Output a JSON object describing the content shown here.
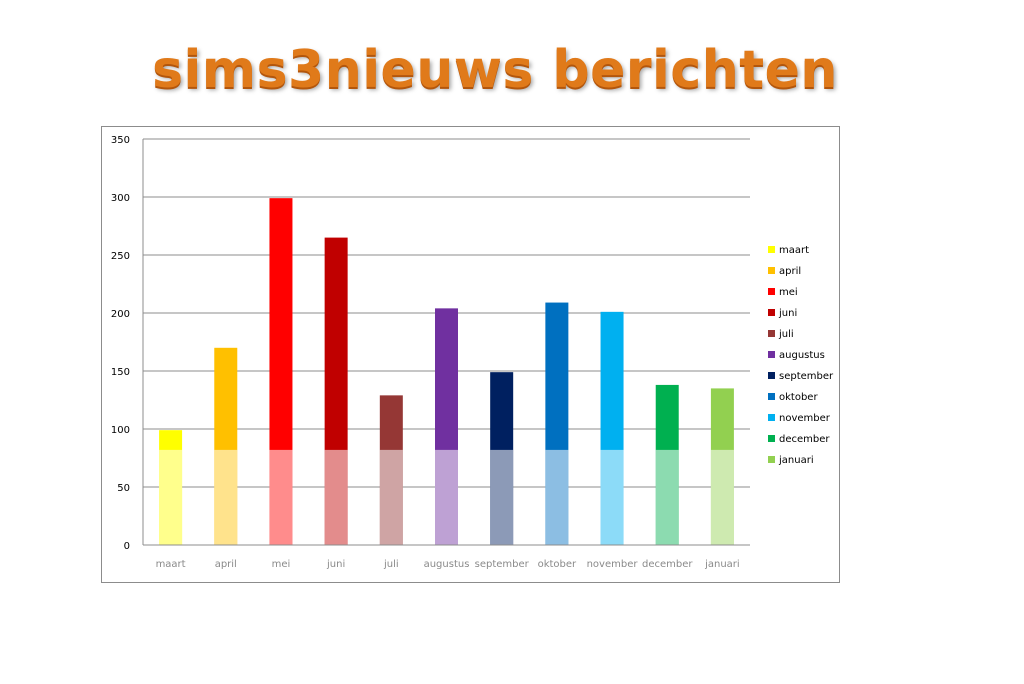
{
  "title": "sims3nieuws berichten",
  "chart_data": {
    "type": "bar",
    "categories": [
      "maart",
      "april",
      "mei",
      "juni",
      "juli",
      "augustus",
      "september",
      "oktober",
      "november",
      "december",
      "januari"
    ],
    "values": [
      99,
      170,
      299,
      265,
      129,
      204,
      149,
      209,
      201,
      138,
      135
    ],
    "colors": [
      "#ffff00",
      "#ffc000",
      "#ff0000",
      "#c00000",
      "#953735",
      "#7030a0",
      "#002060",
      "#0070c0",
      "#00b0f0",
      "#00b050",
      "#92d050"
    ],
    "ylim": [
      0,
      350
    ],
    "yticks": [
      0,
      50,
      100,
      150,
      200,
      250,
      300,
      350
    ],
    "grid": true,
    "legend_position": "right",
    "legend": [
      "maart",
      "april",
      "mei",
      "juni",
      "juli",
      "augustus",
      "september",
      "oktober",
      "november",
      "december",
      "januari"
    ]
  }
}
